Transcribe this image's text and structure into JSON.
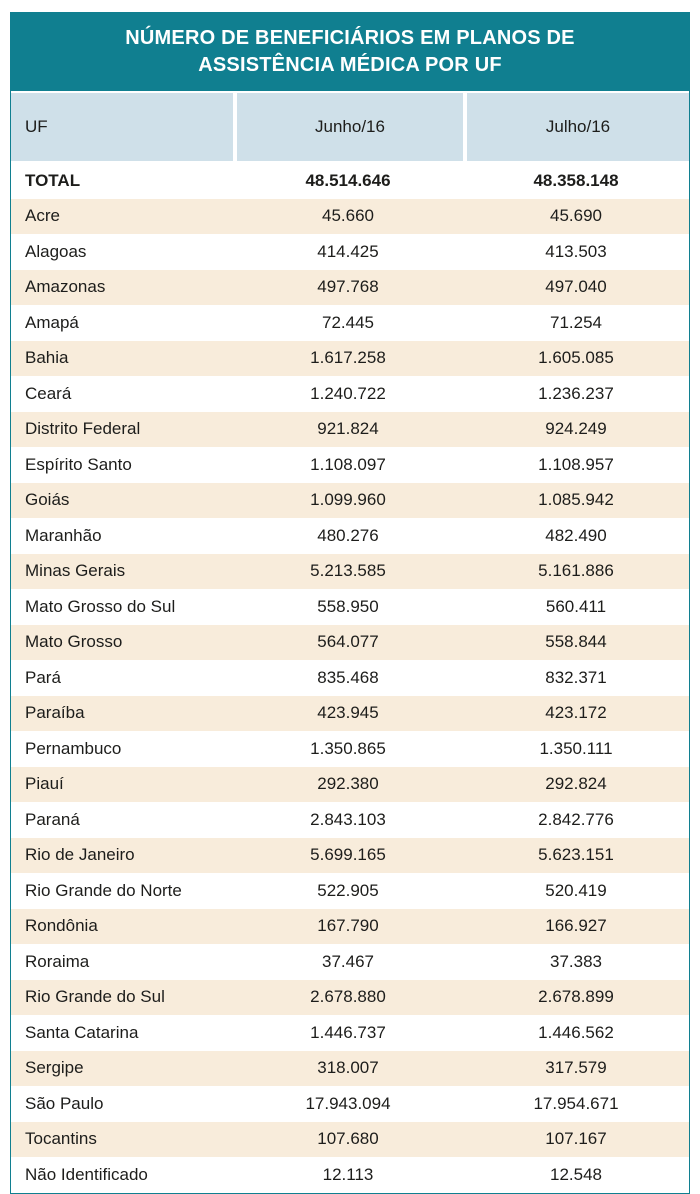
{
  "colors": {
    "header_teal": "#107f90",
    "colheader_blue": "#cfe0e9",
    "row_beige": "#f8ecdb",
    "row_white": "#ffffff",
    "text": "#1d1d1b",
    "title_text": "#ffffff"
  },
  "chart_data": {
    "type": "table",
    "title": "NÚMERO DE BENEFICIÁRIOS EM PLANOS DE ASSISTÊNCIA MÉDICA POR UF",
    "columns": [
      "UF",
      "Junho/16",
      "Julho/16"
    ],
    "total_row": {
      "uf": "TOTAL",
      "junho": "48.514.646",
      "julho": "48.358.148"
    },
    "rows": [
      {
        "uf": "Acre",
        "junho": "45.660",
        "julho": "45.690"
      },
      {
        "uf": "Alagoas",
        "junho": "414.425",
        "julho": "413.503"
      },
      {
        "uf": "Amazonas",
        "junho": "497.768",
        "julho": "497.040"
      },
      {
        "uf": "Amapá",
        "junho": "72.445",
        "julho": "71.254"
      },
      {
        "uf": "Bahia",
        "junho": "1.617.258",
        "julho": "1.605.085"
      },
      {
        "uf": "Ceará",
        "junho": "1.240.722",
        "julho": "1.236.237"
      },
      {
        "uf": "Distrito Federal",
        "junho": "921.824",
        "julho": "924.249"
      },
      {
        "uf": "Espírito Santo",
        "junho": "1.108.097",
        "julho": "1.108.957"
      },
      {
        "uf": "Goiás",
        "junho": "1.099.960",
        "julho": "1.085.942"
      },
      {
        "uf": "Maranhão",
        "junho": "480.276",
        "julho": "482.490"
      },
      {
        "uf": "Minas Gerais",
        "junho": "5.213.585",
        "julho": "5.161.886"
      },
      {
        "uf": "Mato Grosso do Sul",
        "junho": "558.950",
        "julho": "560.411"
      },
      {
        "uf": "Mato Grosso",
        "junho": "564.077",
        "julho": "558.844"
      },
      {
        "uf": "Pará",
        "junho": "835.468",
        "julho": "832.371"
      },
      {
        "uf": "Paraíba",
        "junho": "423.945",
        "julho": "423.172"
      },
      {
        "uf": "Pernambuco",
        "junho": "1.350.865",
        "julho": "1.350.111"
      },
      {
        "uf": "Piauí",
        "junho": "292.380",
        "julho": "292.824"
      },
      {
        "uf": "Paraná",
        "junho": "2.843.103",
        "julho": "2.842.776"
      },
      {
        "uf": "Rio de Janeiro",
        "junho": "5.699.165",
        "julho": "5.623.151"
      },
      {
        "uf": "Rio Grande do Norte",
        "junho": "522.905",
        "julho": "520.419"
      },
      {
        "uf": "Rondônia",
        "junho": "167.790",
        "julho": "166.927"
      },
      {
        "uf": "Roraima",
        "junho": "37.467",
        "julho": "37.383"
      },
      {
        "uf": "Rio Grande do Sul",
        "junho": "2.678.880",
        "julho": "2.678.899"
      },
      {
        "uf": "Santa Catarina",
        "junho": "1.446.737",
        "julho": "1.446.562"
      },
      {
        "uf": "Sergipe",
        "junho": "318.007",
        "julho": "317.579"
      },
      {
        "uf": "São Paulo",
        "junho": "17.943.094",
        "julho": "17.954.671"
      },
      {
        "uf": "Tocantins",
        "junho": "107.680",
        "julho": "107.167"
      },
      {
        "uf": "Não Identificado",
        "junho": "12.113",
        "julho": "12.548"
      }
    ]
  }
}
